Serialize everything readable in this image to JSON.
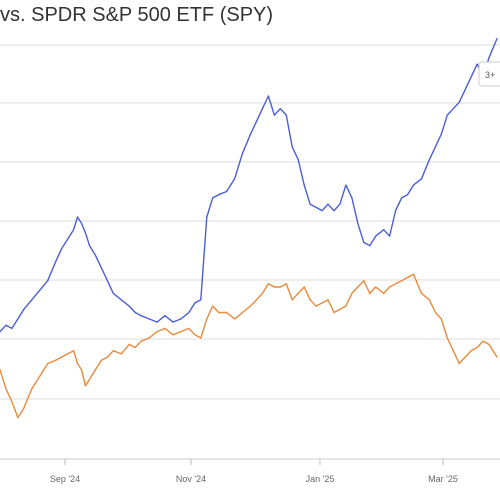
{
  "title": "vs. SPDR S&P 500 ETF (SPY)",
  "range_button": {
    "label": "3+"
  },
  "colors": {
    "series_1": "#4a5fd8",
    "series_2": "#e88a3c",
    "grid": "#dddddd",
    "axis_text": "#666666",
    "title_text": "#333333"
  },
  "chart_data": {
    "type": "line",
    "title": "vs. SPDR S&P 500 ETF (SPY)",
    "xlabel": "",
    "ylabel": "",
    "x_tick_labels": [
      "Sep '24",
      "Nov '24",
      "Jan '25",
      "Mar '25"
    ],
    "x_range": [
      "2024-07-25",
      "2025-04-01"
    ],
    "y_range": [
      -20,
      45
    ],
    "grid": true,
    "legend": "none",
    "series": [
      {
        "values": [
          [
            "2024-07-25",
            0
          ],
          [
            "2024-07-28",
            1
          ],
          [
            "2024-07-31",
            0.5
          ],
          [
            "2024-08-03",
            2
          ],
          [
            "2024-08-06",
            3.5
          ],
          [
            "2024-08-10",
            5
          ],
          [
            "2024-08-14",
            6.5
          ],
          [
            "2024-08-18",
            8
          ],
          [
            "2024-08-22",
            11
          ],
          [
            "2024-08-25",
            13
          ],
          [
            "2024-08-28",
            14.5
          ],
          [
            "2024-08-31",
            16
          ],
          [
            "2024-09-02",
            18
          ],
          [
            "2024-09-04",
            17
          ],
          [
            "2024-09-06",
            15.5
          ],
          [
            "2024-09-08",
            13.5
          ],
          [
            "2024-09-11",
            12
          ],
          [
            "2024-09-14",
            10
          ],
          [
            "2024-09-17",
            8
          ],
          [
            "2024-09-20",
            6
          ],
          [
            "2024-09-24",
            5
          ],
          [
            "2024-09-28",
            4
          ],
          [
            "2024-10-01",
            3
          ],
          [
            "2024-10-04",
            2.5
          ],
          [
            "2024-10-08",
            2
          ],
          [
            "2024-10-12",
            1.5
          ],
          [
            "2024-10-16",
            2.5
          ],
          [
            "2024-10-20",
            1.5
          ],
          [
            "2024-10-24",
            2
          ],
          [
            "2024-10-28",
            3
          ],
          [
            "2024-10-31",
            4.5
          ],
          [
            "2024-11-03",
            5
          ],
          [
            "2024-11-06",
            18
          ],
          [
            "2024-11-09",
            21
          ],
          [
            "2024-11-12",
            21.5
          ],
          [
            "2024-11-16",
            22
          ],
          [
            "2024-11-20",
            24
          ],
          [
            "2024-11-24",
            28
          ],
          [
            "2024-11-28",
            31
          ],
          [
            "2024-12-01",
            33
          ],
          [
            "2024-12-04",
            35
          ],
          [
            "2024-12-07",
            37
          ],
          [
            "2024-12-10",
            34
          ],
          [
            "2024-12-13",
            35
          ],
          [
            "2024-12-16",
            34
          ],
          [
            "2024-12-19",
            29
          ],
          [
            "2024-12-22",
            27
          ],
          [
            "2024-12-25",
            23
          ],
          [
            "2024-12-28",
            20
          ],
          [
            "2024-12-31",
            19.5
          ],
          [
            "2025-01-03",
            19
          ],
          [
            "2025-01-06",
            20
          ],
          [
            "2025-01-09",
            19
          ],
          [
            "2025-01-12",
            20
          ],
          [
            "2025-01-15",
            23
          ],
          [
            "2025-01-18",
            21
          ],
          [
            "2025-01-21",
            17
          ],
          [
            "2025-01-24",
            14
          ],
          [
            "2025-01-27",
            13.5
          ],
          [
            "2025-01-30",
            15
          ],
          [
            "2025-02-03",
            16
          ],
          [
            "2025-02-06",
            15
          ],
          [
            "2025-02-09",
            19
          ],
          [
            "2025-02-12",
            21
          ],
          [
            "2025-02-15",
            21.5
          ],
          [
            "2025-02-18",
            23
          ],
          [
            "2025-02-22",
            24
          ],
          [
            "2025-02-26",
            27
          ],
          [
            "2025-03-01",
            29
          ],
          [
            "2025-03-04",
            31
          ],
          [
            "2025-03-07",
            34
          ],
          [
            "2025-03-10",
            35
          ],
          [
            "2025-03-13",
            36
          ],
          [
            "2025-03-16",
            38
          ],
          [
            "2025-03-19",
            40
          ],
          [
            "2025-03-22",
            42
          ],
          [
            "2025-03-25",
            40
          ],
          [
            "2025-03-28",
            43
          ],
          [
            "2025-04-01",
            46
          ]
        ]
      },
      {
        "values": [
          [
            "2024-07-25",
            -6
          ],
          [
            "2024-07-28",
            -9
          ],
          [
            "2024-07-31",
            -11
          ],
          [
            "2024-08-03",
            -13.5
          ],
          [
            "2024-08-06",
            -12
          ],
          [
            "2024-08-10",
            -9
          ],
          [
            "2024-08-14",
            -7
          ],
          [
            "2024-08-18",
            -5
          ],
          [
            "2024-08-22",
            -4.5
          ],
          [
            "2024-08-25",
            -4
          ],
          [
            "2024-08-28",
            -3.5
          ],
          [
            "2024-08-31",
            -3
          ],
          [
            "2024-09-02",
            -5
          ],
          [
            "2024-09-04",
            -6
          ],
          [
            "2024-09-06",
            -8.5
          ],
          [
            "2024-09-08",
            -7.5
          ],
          [
            "2024-09-11",
            -6
          ],
          [
            "2024-09-14",
            -4.5
          ],
          [
            "2024-09-17",
            -4
          ],
          [
            "2024-09-20",
            -3
          ],
          [
            "2024-09-24",
            -3.5
          ],
          [
            "2024-09-28",
            -2
          ],
          [
            "2024-10-01",
            -2.5
          ],
          [
            "2024-10-04",
            -1.5
          ],
          [
            "2024-10-08",
            -1
          ],
          [
            "2024-10-12",
            0
          ],
          [
            "2024-10-16",
            0.5
          ],
          [
            "2024-10-20",
            -0.5
          ],
          [
            "2024-10-24",
            0
          ],
          [
            "2024-10-28",
            0.5
          ],
          [
            "2024-10-31",
            -0.5
          ],
          [
            "2024-11-03",
            -1
          ],
          [
            "2024-11-06",
            2
          ],
          [
            "2024-11-09",
            4
          ],
          [
            "2024-11-12",
            3
          ],
          [
            "2024-11-16",
            3
          ],
          [
            "2024-11-20",
            2
          ],
          [
            "2024-11-24",
            3
          ],
          [
            "2024-11-28",
            4
          ],
          [
            "2024-12-01",
            5
          ],
          [
            "2024-12-04",
            6
          ],
          [
            "2024-12-07",
            7.5
          ],
          [
            "2024-12-10",
            7
          ],
          [
            "2024-12-13",
            7
          ],
          [
            "2024-12-16",
            7.5
          ],
          [
            "2024-12-19",
            5
          ],
          [
            "2024-12-22",
            6
          ],
          [
            "2024-12-25",
            7
          ],
          [
            "2024-12-28",
            5
          ],
          [
            "2024-12-31",
            4
          ],
          [
            "2025-01-03",
            4.5
          ],
          [
            "2025-01-06",
            5
          ],
          [
            "2025-01-09",
            3
          ],
          [
            "2025-01-12",
            3.5
          ],
          [
            "2025-01-15",
            4
          ],
          [
            "2025-01-18",
            6
          ],
          [
            "2025-01-21",
            7
          ],
          [
            "2025-01-24",
            8
          ],
          [
            "2025-01-27",
            6
          ],
          [
            "2025-01-30",
            7
          ],
          [
            "2025-02-03",
            6
          ],
          [
            "2025-02-06",
            7
          ],
          [
            "2025-02-09",
            7.5
          ],
          [
            "2025-02-12",
            8
          ],
          [
            "2025-02-15",
            8.5
          ],
          [
            "2025-02-18",
            9
          ],
          [
            "2025-02-22",
            6
          ],
          [
            "2025-02-26",
            5
          ],
          [
            "2025-03-01",
            3
          ],
          [
            "2025-03-04",
            2
          ],
          [
            "2025-03-07",
            -1
          ],
          [
            "2025-03-10",
            -3
          ],
          [
            "2025-03-13",
            -5
          ],
          [
            "2025-03-16",
            -4
          ],
          [
            "2025-03-19",
            -3
          ],
          [
            "2025-03-22",
            -2.5
          ],
          [
            "2025-03-25",
            -1.5
          ],
          [
            "2025-03-28",
            -2
          ],
          [
            "2025-04-01",
            -4
          ]
        ]
      }
    ]
  }
}
